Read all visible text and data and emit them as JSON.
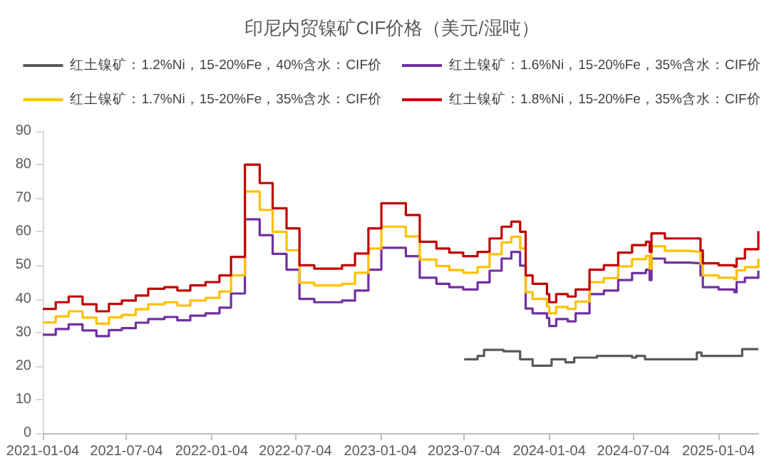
{
  "chart_data": {
    "type": "step",
    "title": "印尼内贸镍矿CIF价格（美元/湿吨）",
    "legend": "top",
    "grid": false,
    "marker": "none",
    "line_style": "solid",
    "xlim": [
      "2021-01-04",
      "2025-03-31"
    ],
    "xticks": [
      "2021-01-04",
      "2021-07-04",
      "2022-01-04",
      "2022-07-04",
      "2023-01-04",
      "2023-07-04",
      "2024-01-04",
      "2024-07-04",
      "2025-01-04"
    ],
    "ylim": [
      0,
      90
    ],
    "yticks": [
      0,
      10,
      20,
      30,
      40,
      50,
      60,
      70,
      80,
      90
    ],
    "series": [
      {
        "name": "红土镍矿：1.2%Ni，15-20%Fe，40%含水：CIF价",
        "color": "#595959",
        "x": [
          "2023-07-04",
          "2023-08-02",
          "2023-08-16",
          "2023-09-27",
          "2023-11-02",
          "2023-11-29",
          "2024-01-09",
          "2024-02-08",
          "2024-02-27",
          "2024-04-16",
          "2024-07-01",
          "2024-07-10",
          "2024-07-29",
          "2024-11-18",
          "2024-11-28",
          "2025-02-24",
          "2025-03-31"
        ],
        "values": [
          22,
          23,
          24.8,
          24.4,
          22,
          20.1,
          22,
          21.1,
          22.5,
          23,
          22.5,
          23,
          22,
          24,
          23,
          25,
          25
        ]
      },
      {
        "name": "红土镍矿：1.6%Ni，15-20%Fe，35%含水：CIF价",
        "color": "#7030a0",
        "x": [
          "2021-01-04",
          "2021-02-01",
          "2021-03-01",
          "2021-03-31",
          "2021-04-30",
          "2021-05-27",
          "2021-06-24",
          "2021-07-24",
          "2021-08-20",
          "2021-09-24",
          "2021-10-22",
          "2021-11-19",
          "2021-12-22",
          "2022-01-21",
          "2022-02-15",
          "2022-03-17",
          "2022-04-18",
          "2022-05-16",
          "2022-06-15",
          "2022-07-13",
          "2022-08-14",
          "2022-10-13",
          "2022-11-10",
          "2022-12-09",
          "2023-01-06",
          "2023-02-28",
          "2023-03-30",
          "2023-05-05",
          "2023-06-02",
          "2023-07-02",
          "2023-08-02",
          "2023-08-28",
          "2023-09-23",
          "2023-10-14",
          "2023-11-02",
          "2023-11-14",
          "2023-11-29",
          "2023-12-30",
          "2024-01-04",
          "2024-01-19",
          "2024-02-13",
          "2024-03-01",
          "2024-03-31",
          "2024-05-01",
          "2024-06-01",
          "2024-07-01",
          "2024-07-31",
          "2024-08-08",
          "2024-08-12",
          "2024-09-10",
          "2024-11-01",
          "2024-11-26",
          "2024-12-01",
          "2025-01-04",
          "2025-02-07",
          "2025-02-12",
          "2025-03-02",
          "2025-03-31"
        ],
        "values": [
          29.3,
          31,
          32.4,
          30.6,
          28.9,
          30.7,
          31.3,
          32.9,
          34,
          34.6,
          33.6,
          35,
          35.7,
          37.4,
          41.6,
          63.7,
          59,
          53.4,
          48.7,
          40,
          39,
          39.5,
          42.5,
          48.7,
          55.2,
          52.7,
          46.3,
          44.5,
          43.5,
          42.8,
          44.9,
          48.4,
          52,
          54,
          49.9,
          37.1,
          35.7,
          34.3,
          31.9,
          34,
          33.3,
          35.7,
          41.4,
          42.5,
          45.6,
          47.7,
          48.7,
          45.6,
          52,
          50.8,
          50.6,
          47,
          43.5,
          42.8,
          42,
          45,
          46.3,
          48.4
        ]
      },
      {
        "name": "红土镍矿：1.7%Ni，15-20%Fe，35%含水：CIF价",
        "color": "#ffc000",
        "x": [
          "2021-01-04",
          "2021-02-01",
          "2021-03-01",
          "2021-03-31",
          "2021-04-30",
          "2021-05-27",
          "2021-06-24",
          "2021-07-24",
          "2021-08-20",
          "2021-09-24",
          "2021-10-22",
          "2021-11-19",
          "2021-12-22",
          "2022-01-21",
          "2022-02-15",
          "2022-03-17",
          "2022-04-18",
          "2022-05-16",
          "2022-06-15",
          "2022-07-13",
          "2022-08-14",
          "2022-10-13",
          "2022-11-10",
          "2022-12-09",
          "2023-01-06",
          "2023-02-28",
          "2023-03-30",
          "2023-05-05",
          "2023-06-02",
          "2023-07-02",
          "2023-08-02",
          "2023-08-28",
          "2023-09-23",
          "2023-10-14",
          "2023-11-02",
          "2023-11-14",
          "2023-11-29",
          "2023-12-30",
          "2024-01-04",
          "2024-01-19",
          "2024-02-13",
          "2024-03-01",
          "2024-03-31",
          "2024-05-01",
          "2024-06-01",
          "2024-07-01",
          "2024-07-31",
          "2024-08-08",
          "2024-08-12",
          "2024-09-10",
          "2024-11-01",
          "2024-11-26",
          "2024-12-01",
          "2025-01-04",
          "2025-02-07",
          "2025-02-12",
          "2025-03-02",
          "2025-03-31"
        ],
        "values": [
          33,
          34.8,
          36.3,
          34.4,
          32.6,
          34.5,
          35.2,
          36.9,
          38.4,
          39,
          38,
          39.5,
          40.3,
          42.2,
          47,
          72,
          66.5,
          60,
          54.5,
          44.8,
          44,
          44.5,
          47.8,
          55,
          61.5,
          58.6,
          51.7,
          49.8,
          48.6,
          47.8,
          49.5,
          53.3,
          56.8,
          58.5,
          55,
          42,
          40,
          37.8,
          35.7,
          37.6,
          37,
          39.2,
          45,
          46.2,
          49.7,
          51.8,
          52.8,
          49,
          55.7,
          54.3,
          54,
          50.5,
          47,
          46.3,
          45.8,
          48.5,
          49.5,
          52
        ]
      },
      {
        "name": "红土镍矿：1.8%Ni，15-20%Fe，35%含水：CIF价",
        "color": "#c00000",
        "x": [
          "2021-01-04",
          "2021-02-01",
          "2021-03-01",
          "2021-03-31",
          "2021-04-30",
          "2021-05-27",
          "2021-06-24",
          "2021-07-24",
          "2021-08-20",
          "2021-09-24",
          "2021-10-22",
          "2021-11-19",
          "2021-12-22",
          "2022-01-21",
          "2022-02-15",
          "2022-03-17",
          "2022-04-18",
          "2022-05-16",
          "2022-06-15",
          "2022-07-13",
          "2022-08-14",
          "2022-10-13",
          "2022-11-10",
          "2022-12-09",
          "2023-01-06",
          "2023-02-28",
          "2023-03-30",
          "2023-05-05",
          "2023-06-02",
          "2023-07-02",
          "2023-08-02",
          "2023-08-28",
          "2023-09-23",
          "2023-10-14",
          "2023-11-02",
          "2023-11-14",
          "2023-11-29",
          "2023-12-30",
          "2024-01-04",
          "2024-01-19",
          "2024-02-13",
          "2024-03-01",
          "2024-03-31",
          "2024-05-01",
          "2024-06-01",
          "2024-07-01",
          "2024-07-31",
          "2024-08-08",
          "2024-08-12",
          "2024-09-10",
          "2024-11-01",
          "2024-11-26",
          "2024-12-01",
          "2025-01-04",
          "2025-02-07",
          "2025-02-12",
          "2025-03-02",
          "2025-03-31"
        ],
        "values": [
          37,
          39,
          40.7,
          38.4,
          36.3,
          38.5,
          39.5,
          41,
          43,
          43.5,
          42.5,
          44,
          45,
          47,
          52.5,
          80,
          74.5,
          67,
          61,
          50,
          49,
          50,
          53.5,
          61,
          68.5,
          65,
          57,
          55,
          53.8,
          52.7,
          54,
          58,
          61.5,
          63,
          60,
          47,
          44.5,
          41.4,
          39,
          41.4,
          40.7,
          42.8,
          48.7,
          50,
          53.8,
          56,
          57,
          54,
          59.5,
          58,
          58,
          54.4,
          50.6,
          50,
          49.6,
          52,
          54.8,
          60.2
        ]
      }
    ]
  }
}
